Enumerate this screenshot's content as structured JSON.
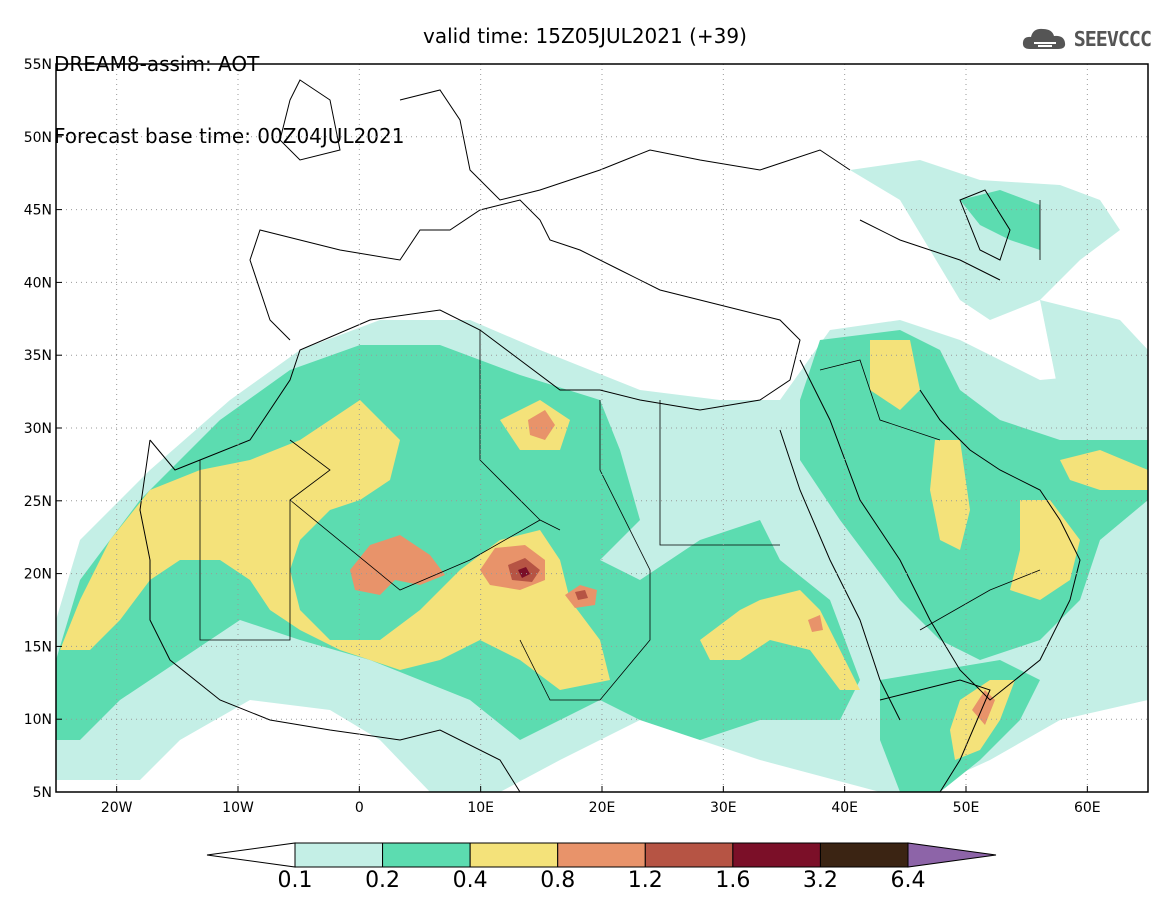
{
  "header": {
    "line1": "DREAM8-assim: AOT",
    "line2_base": "Forecast base time: 00Z04JUL2021",
    "line2_valid": "valid time: 15Z05JUL2021 (+39)"
  },
  "logo": {
    "text": "SEEVCCC",
    "icon": "cloud-icon"
  },
  "map": {
    "lon_range": [
      -25,
      65
    ],
    "lat_range": [
      5,
      55
    ],
    "lon_ticks": [
      {
        "value": -20,
        "label": "20W"
      },
      {
        "value": -10,
        "label": "10W"
      },
      {
        "value": 0,
        "label": "0"
      },
      {
        "value": 10,
        "label": "10E"
      },
      {
        "value": 20,
        "label": "20E"
      },
      {
        "value": 30,
        "label": "30E"
      },
      {
        "value": 40,
        "label": "40E"
      },
      {
        "value": 50,
        "label": "50E"
      },
      {
        "value": 60,
        "label": "60E"
      }
    ],
    "lat_ticks": [
      {
        "value": 5,
        "label": "5N"
      },
      {
        "value": 10,
        "label": "10N"
      },
      {
        "value": 15,
        "label": "15N"
      },
      {
        "value": 20,
        "label": "20N"
      },
      {
        "value": 25,
        "label": "25N"
      },
      {
        "value": 30,
        "label": "30N"
      },
      {
        "value": 35,
        "label": "35N"
      },
      {
        "value": 40,
        "label": "40N"
      },
      {
        "value": 45,
        "label": "45N"
      },
      {
        "value": 50,
        "label": "50N"
      },
      {
        "value": 55,
        "label": "55N"
      }
    ],
    "grid": true
  },
  "legend": {
    "labels": [
      "0.1",
      "0.2",
      "0.4",
      "0.8",
      "1.2",
      "1.6",
      "3.2",
      "6.4"
    ],
    "colors": [
      "#ffffff",
      "#c4efe6",
      "#5cdcb0",
      "#f4e27a",
      "#e8936a",
      "#b65444",
      "#7b0f28",
      "#3b2413",
      "#8d64a8"
    ]
  }
}
